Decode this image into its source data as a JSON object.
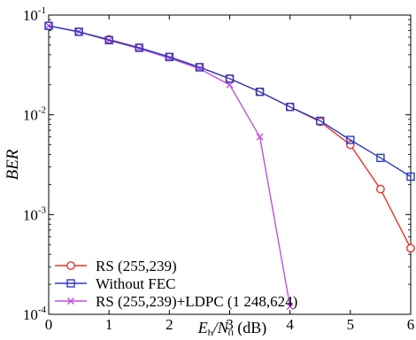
{
  "chart_data": {
    "type": "line",
    "title": "",
    "xlabel": {
      "main": "E",
      "sub1": "b",
      "mid": "/N",
      "sub2": "0",
      "suffix": " (dB)"
    },
    "ylabel": "BER",
    "xlim": [
      0,
      6
    ],
    "ylim": [
      0.0001,
      0.1
    ],
    "yscale": "log",
    "grid": false,
    "legend_position": "bottom-left",
    "x_ticks": [
      0,
      1,
      2,
      3,
      4,
      5,
      6
    ],
    "x_tick_labels": [
      "0",
      "1",
      "2",
      "3",
      "4",
      "5",
      "6"
    ],
    "y_ticks": [
      0.1,
      0.01,
      0.001,
      0.0001
    ],
    "y_tick_labels": [
      {
        "base": "10",
        "exp": "-1"
      },
      {
        "base": "10",
        "exp": "-2"
      },
      {
        "base": "10",
        "exp": "-3"
      },
      {
        "base": "10",
        "exp": "-4"
      }
    ],
    "series": [
      {
        "name": "RS (255,239)",
        "color": "#e8322b",
        "marker": "circle",
        "x": [
          0,
          0.5,
          1,
          1.5,
          2,
          2.5,
          3,
          3.5,
          4,
          4.5,
          5,
          5.5,
          6
        ],
        "y": [
          0.078,
          0.068,
          0.057,
          0.047,
          0.038,
          0.03,
          0.023,
          0.017,
          0.012,
          0.0085,
          0.005,
          0.0018,
          0.00046
        ]
      },
      {
        "name": "Without FEC",
        "color": "#2a3cc4",
        "marker": "square",
        "x": [
          0,
          0.5,
          1,
          1.5,
          2,
          2.5,
          3,
          3.5,
          4,
          4.5,
          5,
          5.5,
          6
        ],
        "y": [
          0.078,
          0.068,
          0.056,
          0.047,
          0.038,
          0.03,
          0.023,
          0.017,
          0.012,
          0.0087,
          0.0056,
          0.0037,
          0.0024
        ]
      },
      {
        "name": "RS (255,239)+LDPC (1 248,624)",
        "color": "#c24fe0",
        "marker": "x",
        "x": [
          0,
          0.5,
          1,
          1.5,
          2,
          2.5,
          3,
          3.5,
          4
        ],
        "y": [
          0.078,
          0.068,
          0.056,
          0.046,
          0.037,
          0.029,
          0.02,
          0.006,
          0.00012
        ]
      }
    ]
  }
}
